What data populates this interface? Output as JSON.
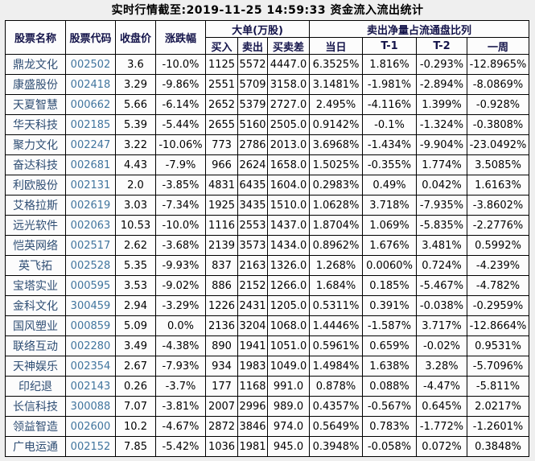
{
  "title": "实时行情截至:2019-11-25 14:59:33 资金流入流出统计",
  "colors": {
    "stock_name": "#2f4e74",
    "stock_code": "#41759e",
    "header_text": "#14144a",
    "value_text": "#000000",
    "grid_line": "#000000",
    "cell_background": "#fcfcfc",
    "page_background": "#efefef"
  },
  "table": {
    "headers": {
      "stock_name": "股票名称",
      "stock_code": "股票代码",
      "close": "收盘价",
      "change": "涨跌幅",
      "big_order_group": "大单(万股)",
      "buy": "买入",
      "sell": "卖出",
      "diff": "买卖差",
      "ratio_group": "卖出净量占流通盘比列",
      "day": "当日",
      "t1": "T-1",
      "t2": "T-2",
      "week": "一周"
    },
    "rows": [
      {
        "name": "鼎龙文化",
        "code": "002502",
        "close": "3.6",
        "change": "-10.0%",
        "buy": "1125",
        "sell": "5572",
        "diff": "4447.0",
        "day": "6.3525%",
        "t1": "1.816%",
        "t2": "-0.293%",
        "week": "-12.8965%"
      },
      {
        "name": "康盛股份",
        "code": "002418",
        "close": "3.29",
        "change": "-9.86%",
        "buy": "2551",
        "sell": "5709",
        "diff": "3158.0",
        "day": "3.1481%",
        "t1": "-1.981%",
        "t2": "-2.894%",
        "week": "-8.0869%"
      },
      {
        "name": "天夏智慧",
        "code": "000662",
        "close": "5.66",
        "change": "-6.14%",
        "buy": "2652",
        "sell": "5379",
        "diff": "2727.0",
        "day": "2.495%",
        "t1": "-4.116%",
        "t2": "1.399%",
        "week": "-0.928%"
      },
      {
        "name": "华天科技",
        "code": "002185",
        "close": "5.39",
        "change": "-5.44%",
        "buy": "2655",
        "sell": "5160",
        "diff": "2505.0",
        "day": "0.9142%",
        "t1": "-0.1%",
        "t2": "-1.324%",
        "week": "-0.3808%"
      },
      {
        "name": "聚力文化",
        "code": "002247",
        "close": "3.22",
        "change": "-10.06%",
        "buy": "773",
        "sell": "2786",
        "diff": "2013.0",
        "day": "3.6968%",
        "t1": "-1.434%",
        "t2": "-9.904%",
        "week": "-23.0492%"
      },
      {
        "name": "奋达科技",
        "code": "002681",
        "close": "4.43",
        "change": "-7.9%",
        "buy": "966",
        "sell": "2624",
        "diff": "1658.0",
        "day": "1.5025%",
        "t1": "-0.355%",
        "t2": "1.774%",
        "week": "3.5085%"
      },
      {
        "name": "利欧股份",
        "code": "002131",
        "close": "2.0",
        "change": "-3.85%",
        "buy": "4831",
        "sell": "6435",
        "diff": "1604.0",
        "day": "0.2983%",
        "t1": "0.49%",
        "t2": "0.042%",
        "week": "1.6163%"
      },
      {
        "name": "艾格拉斯",
        "code": "002619",
        "close": "3.03",
        "change": "-7.34%",
        "buy": "1925",
        "sell": "3435",
        "diff": "1510.0",
        "day": "1.0628%",
        "t1": "3.718%",
        "t2": "-7.935%",
        "week": "-3.8602%"
      },
      {
        "name": "远光软件",
        "code": "002063",
        "close": "10.53",
        "change": "-10.0%",
        "buy": "1116",
        "sell": "2553",
        "diff": "1437.0",
        "day": "1.8704%",
        "t1": "1.069%",
        "t2": "-5.835%",
        "week": "-2.2776%"
      },
      {
        "name": "恺英网络",
        "code": "002517",
        "close": "2.62",
        "change": "-3.68%",
        "buy": "2139",
        "sell": "3573",
        "diff": "1434.0",
        "day": "0.8962%",
        "t1": "1.676%",
        "t2": "3.481%",
        "week": "0.5992%"
      },
      {
        "name": "英飞拓",
        "code": "002528",
        "close": "5.35",
        "change": "-9.93%",
        "buy": "837",
        "sell": "2163",
        "diff": "1326.0",
        "day": "1.268%",
        "t1": "0.0060%",
        "t2": "0.724%",
        "week": "-4.239%"
      },
      {
        "name": "宝塔实业",
        "code": "000595",
        "close": "3.53",
        "change": "-9.02%",
        "buy": "886",
        "sell": "2152",
        "diff": "1266.0",
        "day": "1.684%",
        "t1": "0.185%",
        "t2": "-5.467%",
        "week": "-4.782%"
      },
      {
        "name": "金科文化",
        "code": "300459",
        "close": "2.94",
        "change": "-3.29%",
        "buy": "1226",
        "sell": "2431",
        "diff": "1205.0",
        "day": "0.5311%",
        "t1": "0.391%",
        "t2": "-0.038%",
        "week": "-0.2959%"
      },
      {
        "name": "国风塑业",
        "code": "000859",
        "close": "5.09",
        "change": "0.0%",
        "buy": "2136",
        "sell": "3204",
        "diff": "1068.0",
        "day": "1.4446%",
        "t1": "-1.587%",
        "t2": "3.717%",
        "week": "-12.8664%"
      },
      {
        "name": "联络互动",
        "code": "002280",
        "close": "3.49",
        "change": "-4.38%",
        "buy": "890",
        "sell": "1941",
        "diff": "1051.0",
        "day": "0.5961%",
        "t1": "0.659%",
        "t2": "-0.02%",
        "week": "0.9531%"
      },
      {
        "name": "天神娱乐",
        "code": "002354",
        "close": "2.67",
        "change": "-7.93%",
        "buy": "934",
        "sell": "1983",
        "diff": "1049.0",
        "day": "1.4984%",
        "t1": "1.638%",
        "t2": "3.28%",
        "week": "-5.7096%"
      },
      {
        "name": "印纪退",
        "code": "002143",
        "close": "0.26",
        "change": "-3.7%",
        "buy": "177",
        "sell": "1168",
        "diff": "991.0",
        "day": "0.878%",
        "t1": "0.088%",
        "t2": "-4.47%",
        "week": "-5.811%"
      },
      {
        "name": "长信科技",
        "code": "300088",
        "close": "7.07",
        "change": "-3.81%",
        "buy": "2007",
        "sell": "2996",
        "diff": "989.0",
        "day": "0.4357%",
        "t1": "-0.567%",
        "t2": "0.645%",
        "week": "2.0217%"
      },
      {
        "name": "领益智造",
        "code": "002600",
        "close": "10.2",
        "change": "-4.67%",
        "buy": "2872",
        "sell": "3846",
        "diff": "974.0",
        "day": "0.5649%",
        "t1": "0.783%",
        "t2": "-1.772%",
        "week": "-1.2601%"
      },
      {
        "name": "广电运通",
        "code": "002152",
        "close": "7.85",
        "change": "-5.42%",
        "buy": "1036",
        "sell": "1981",
        "diff": "945.0",
        "day": "0.3948%",
        "t1": "-0.058%",
        "t2": "0.072%",
        "week": "0.3848%"
      }
    ]
  }
}
